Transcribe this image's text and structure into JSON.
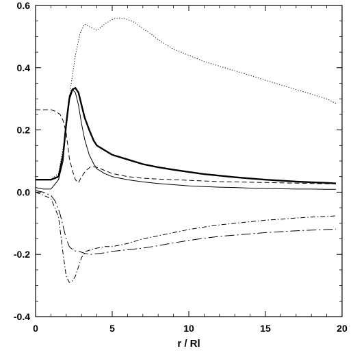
{
  "chart_data": {
    "type": "line",
    "title": "",
    "xlabel": "r / Rl",
    "ylabel": "",
    "xlim": [
      0,
      20
    ],
    "ylim": [
      -0.4,
      0.6
    ],
    "grid": false,
    "legend": "none",
    "x_ticks": [
      0,
      5,
      10,
      15,
      20
    ],
    "x_tick_labels": [
      "0",
      "5",
      "10",
      "15",
      "20"
    ],
    "y_ticks": [
      0.6,
      0.4,
      0.2,
      0.0,
      -0.2,
      -0.4
    ],
    "y_tick_labels": [
      "0.6",
      "0.4",
      "0.2",
      "0.0",
      "-0.2",
      "-0.4"
    ],
    "series": [
      {
        "style": "dotted",
        "x": [
          0,
          0.5,
          1.0,
          1.5,
          2.0,
          2.3,
          2.6,
          2.9,
          3.2,
          3.6,
          4.0,
          4.5,
          5.0,
          5.5,
          6.0,
          6.5,
          7.0,
          7.5,
          8.0,
          9.0,
          10.0,
          11.0,
          12.0,
          13.0,
          14.0,
          15.0,
          16.0,
          17.0,
          18.0,
          19.0,
          19.6
        ],
        "y": [
          0.04,
          0.04,
          0.04,
          0.06,
          0.2,
          0.34,
          0.44,
          0.51,
          0.54,
          0.53,
          0.52,
          0.54,
          0.555,
          0.56,
          0.555,
          0.545,
          0.525,
          0.51,
          0.49,
          0.46,
          0.44,
          0.42,
          0.405,
          0.39,
          0.375,
          0.36,
          0.345,
          0.33,
          0.315,
          0.3,
          0.285
        ]
      },
      {
        "style": "solid-bold",
        "x": [
          0,
          0.5,
          1.0,
          1.5,
          1.8,
          2.0,
          2.2,
          2.4,
          2.6,
          2.8,
          3.0,
          3.2,
          3.5,
          3.8,
          4.0,
          4.5,
          5.0,
          6.0,
          7.0,
          8.0,
          9.0,
          10.0,
          11.0,
          12.0,
          13.0,
          14.0,
          15.0,
          16.0,
          17.0,
          18.0,
          19.0,
          19.6
        ],
        "y": [
          0.04,
          0.04,
          0.04,
          0.05,
          0.12,
          0.22,
          0.3,
          0.33,
          0.335,
          0.32,
          0.28,
          0.24,
          0.2,
          0.165,
          0.15,
          0.135,
          0.12,
          0.105,
          0.09,
          0.08,
          0.072,
          0.065,
          0.058,
          0.053,
          0.048,
          0.044,
          0.04,
          0.037,
          0.034,
          0.032,
          0.03,
          0.028
        ]
      },
      {
        "style": "solid-thin",
        "x": [
          0,
          0.5,
          1.0,
          1.5,
          1.8,
          2.0,
          2.2,
          2.4,
          2.6,
          2.8,
          3.0,
          3.2,
          3.5,
          3.8,
          4.0,
          4.5,
          5.0,
          6.0,
          7.0,
          8.0,
          9.0,
          10.0,
          11.0,
          12.0,
          13.0,
          14.0,
          15.0,
          16.0,
          17.0,
          18.0,
          19.0,
          19.6
        ],
        "y": [
          0.015,
          0.01,
          0.01,
          0.04,
          0.1,
          0.22,
          0.31,
          0.33,
          0.32,
          0.28,
          0.22,
          0.17,
          0.12,
          0.09,
          0.075,
          0.06,
          0.05,
          0.04,
          0.033,
          0.028,
          0.024,
          0.02,
          0.018,
          0.016,
          0.015,
          0.013,
          0.012,
          0.011,
          0.01,
          0.01,
          0.009,
          0.009
        ]
      },
      {
        "style": "dashed",
        "x": [
          0,
          0.5,
          1.0,
          1.3,
          1.6,
          1.8,
          2.0,
          2.2,
          2.4,
          2.6,
          2.8,
          3.0,
          3.3,
          3.6,
          4.0,
          4.5,
          5.0,
          6.0,
          7.0,
          8.0,
          9.0,
          10.0,
          11.0,
          12.0,
          13.0,
          14.0,
          15.0,
          16.0,
          17.0,
          18.0,
          19.0,
          19.6
        ],
        "y": [
          0.265,
          0.265,
          0.265,
          0.26,
          0.25,
          0.23,
          0.19,
          0.11,
          0.07,
          0.04,
          0.03,
          0.05,
          0.07,
          0.082,
          0.08,
          0.07,
          0.06,
          0.05,
          0.045,
          0.042,
          0.04,
          0.038,
          0.036,
          0.034,
          0.033,
          0.032,
          0.031,
          0.03,
          0.029,
          0.028,
          0.027,
          0.027
        ]
      },
      {
        "style": "dash-dot",
        "x": [
          0,
          0.5,
          1.0,
          1.5,
          1.8,
          2.0,
          2.2,
          2.4,
          2.6,
          2.8,
          3.0,
          3.3,
          3.6,
          4.0,
          4.5,
          5.0,
          6.0,
          7.0,
          8.0,
          9.0,
          10.0,
          11.0,
          12.0,
          13.0,
          14.0,
          15.0,
          16.0,
          17.0,
          18.0,
          19.0,
          19.6
        ],
        "y": [
          0,
          -0.01,
          -0.02,
          -0.08,
          -0.2,
          -0.27,
          -0.29,
          -0.285,
          -0.27,
          -0.24,
          -0.21,
          -0.19,
          -0.185,
          -0.18,
          -0.175,
          -0.175,
          -0.165,
          -0.15,
          -0.14,
          -0.13,
          -0.12,
          -0.112,
          -0.105,
          -0.1,
          -0.095,
          -0.09,
          -0.087,
          -0.083,
          -0.08,
          -0.078,
          -0.076
        ]
      },
      {
        "style": "long-dash-dot",
        "x": [
          0,
          0.5,
          1.0,
          1.3,
          1.6,
          1.8,
          2.0,
          2.2,
          2.5,
          2.8,
          3.0,
          3.3,
          3.6,
          4.0,
          4.5,
          5.0,
          6.0,
          7.0,
          8.0,
          9.0,
          10.0,
          11.0,
          12.0,
          13.0,
          14.0,
          15.0,
          16.0,
          17.0,
          18.0,
          19.0,
          19.6
        ],
        "y": [
          0.005,
          0.0,
          -0.01,
          -0.03,
          -0.07,
          -0.11,
          -0.15,
          -0.175,
          -0.188,
          -0.19,
          -0.193,
          -0.198,
          -0.2,
          -0.198,
          -0.195,
          -0.19,
          -0.185,
          -0.18,
          -0.172,
          -0.163,
          -0.155,
          -0.148,
          -0.142,
          -0.138,
          -0.134,
          -0.13,
          -0.127,
          -0.124,
          -0.122,
          -0.12,
          -0.119
        ]
      }
    ]
  }
}
